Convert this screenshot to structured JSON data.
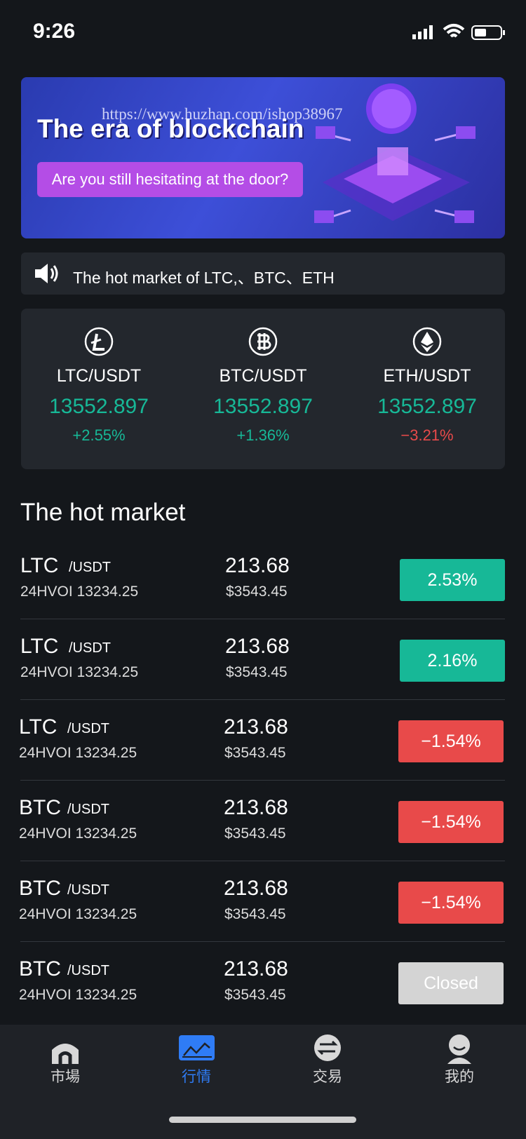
{
  "status_bar": {
    "time": "9:26"
  },
  "banner": {
    "watermark": "https://www.huzhan.com/ishop38967",
    "title": "The era of blockchain",
    "button": "Are you still hesitating at the door?"
  },
  "notice": {
    "text": "The hot market of LTC,、BTC、ETH"
  },
  "tickers": [
    {
      "pair": "LTC/USDT",
      "price": "13552.897",
      "change": "+2.55%",
      "color": "#17b897"
    },
    {
      "pair": "BTC/USDT",
      "price": "13552.897",
      "change": "+1.36%",
      "color": "#17b897"
    },
    {
      "pair": "ETH/USDT",
      "price": "13552.897",
      "change": "−3.21%",
      "color": "#e84a4a"
    }
  ],
  "hot_market": {
    "title": "The hot market",
    "rows": [
      {
        "coin": "LTC",
        "quote": "/USDT",
        "volume": "24HVOI 13234.25",
        "price": "213.68",
        "usd": "$3543.45",
        "change": "2.53%",
        "color": "#17b897"
      },
      {
        "coin": "LTC",
        "quote": "/USDT",
        "volume": "24HVOI 13234.25",
        "price": "213.68",
        "usd": "$3543.45",
        "change": "2.16%",
        "color": "#17b897"
      },
      {
        "coin": "LTC",
        "quote": "/USDT",
        "volume": "24HVOI 13234.25",
        "price": "213.68",
        "usd": "$3543.45",
        "change": "−1.54%",
        "color": "#e84a4a"
      },
      {
        "coin": "BTC",
        "quote": "/USDT",
        "volume": "24HVOI 13234.25",
        "price": "213.68",
        "usd": "$3543.45",
        "change": "−1.54%",
        "color": "#e84a4a"
      },
      {
        "coin": "BTC",
        "quote": "/USDT",
        "volume": "24HVOI 13234.25",
        "price": "213.68",
        "usd": "$3543.45",
        "change": "−1.54%",
        "color": "#e84a4a"
      },
      {
        "coin": "BTC",
        "quote": "/USDT",
        "volume": "24HVOI 13234.25",
        "price": "213.68",
        "usd": "$3543.45",
        "change": "Closed",
        "color": "#d4d4d4"
      }
    ]
  },
  "tab_bar": {
    "tabs": [
      "市場",
      "行情",
      "交易",
      "我的"
    ],
    "active": 1
  }
}
